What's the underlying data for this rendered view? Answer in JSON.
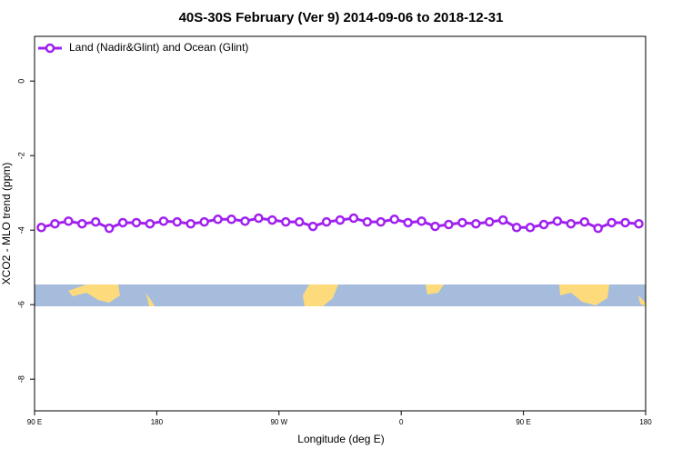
{
  "chart_data": {
    "type": "line",
    "title": "40S-30S February (Ver 9)   2014-09-06 to 2018-12-31",
    "x_label": "Longitude (deg E)",
    "y_label": "XCO2 - MLO trend (ppm)",
    "x": [
      95,
      105,
      115,
      125,
      135,
      145,
      155,
      165,
      175,
      185,
      195,
      205,
      215,
      225,
      235,
      245,
      255,
      265,
      275,
      285,
      295,
      305,
      315,
      325,
      335,
      345,
      355,
      365,
      375,
      385,
      395,
      405,
      415,
      425,
      435,
      445,
      455,
      465,
      475,
      485,
      495,
      505,
      515,
      525,
      535
    ],
    "series": [
      {
        "name": "Land (Nadir&Glint) and Ocean (Glint)",
        "color": "#a020f0",
        "values": [
          -3.93,
          -3.83,
          -3.76,
          -3.83,
          -3.78,
          -3.95,
          -3.8,
          -3.8,
          -3.83,
          -3.76,
          -3.78,
          -3.83,
          -3.78,
          -3.71,
          -3.71,
          -3.76,
          -3.68,
          -3.73,
          -3.78,
          -3.78,
          -3.9,
          -3.78,
          -3.73,
          -3.68,
          -3.78,
          -3.78,
          -3.71,
          -3.8,
          -3.76,
          -3.9,
          -3.85,
          -3.8,
          -3.83,
          -3.78,
          -3.73,
          -3.93,
          -3.93,
          -3.85,
          -3.76,
          -3.83,
          -3.78,
          -3.95,
          -3.8,
          -3.8,
          -3.83
        ]
      }
    ],
    "xlim": [
      90,
      540
    ],
    "xticks": [
      {
        "value": 90,
        "label": "90 E"
      },
      180,
      {
        "value": 270,
        "label": "90 W"
      },
      {
        "value": 360,
        "label": "0"
      },
      {
        "value": 450,
        "label": "90 E"
      },
      {
        "value": 540,
        "label": "180"
      }
    ],
    "ylim": [
      -8.85,
      1.2
    ],
    "yticks": [
      0,
      -2,
      -4,
      -6,
      -8
    ],
    "legend": "top-left"
  }
}
